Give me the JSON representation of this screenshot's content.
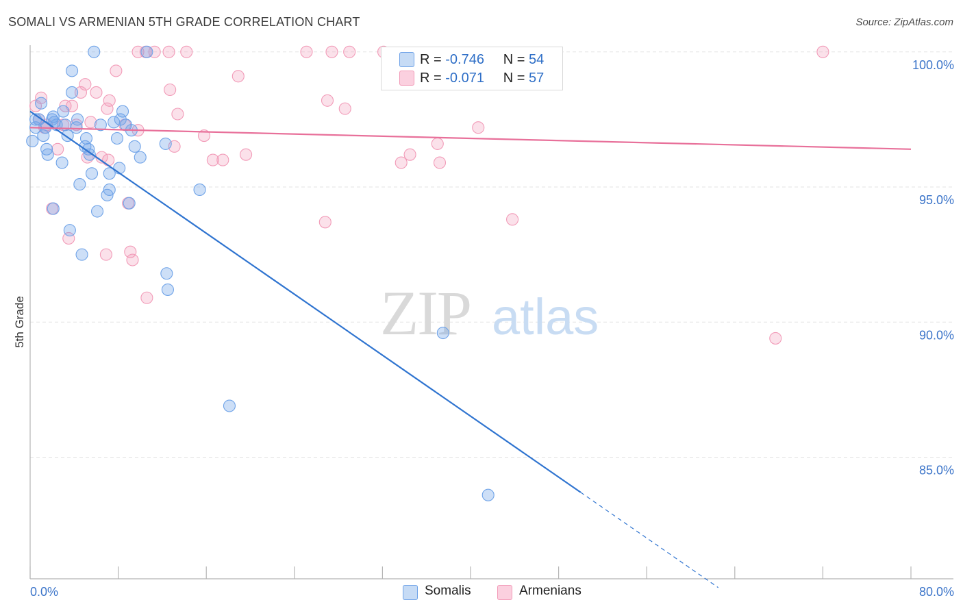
{
  "title": "SOMALI VS ARMENIAN 5TH GRADE CORRELATION CHART",
  "source": "Source: ZipAtlas.com",
  "watermark": "ZIPatlas",
  "legend": {
    "rows": [
      {
        "r_label": "R =",
        "r_value": "-0.746",
        "n_label": "N =",
        "n_value": "54",
        "color": "#6fa3e8"
      },
      {
        "r_label": "R =",
        "r_value": "-0.071",
        "n_label": "N =",
        "n_value": "57",
        "color": "#f29bb8"
      }
    ]
  },
  "bottom_legend": [
    {
      "label": "Somalis",
      "color": "#6fa3e8"
    },
    {
      "label": "Armenians",
      "color": "#f29bb8"
    }
  ],
  "chart_data": {
    "type": "scatter",
    "title": "SOMALI VS ARMENIAN 5TH GRADE CORRELATION CHART",
    "xlabel": "",
    "ylabel": "5th Grade",
    "xlim": [
      0,
      80
    ],
    "ylim": [
      80.5,
      100.4
    ],
    "x_tick_labels": [
      "0.0%",
      "80.0%"
    ],
    "y_ticks": [
      85,
      90,
      95,
      100
    ],
    "y_tick_labels": [
      "85.0%",
      "90.0%",
      "95.0%",
      "100.0%"
    ],
    "grid": true,
    "series": [
      {
        "name": "Somalis",
        "color": "#6fa3e8",
        "trend": {
          "x0": 0,
          "y0": 97.8,
          "x1": 50,
          "y1": 83.7,
          "x_dash_end": 62.5
        },
        "points": [
          [
            0.2,
            96.7
          ],
          [
            0.5,
            97.2
          ],
          [
            0.8,
            97.5
          ],
          [
            1.0,
            98.1
          ],
          [
            1.2,
            96.9
          ],
          [
            1.4,
            97.2
          ],
          [
            1.5,
            96.4
          ],
          [
            1.6,
            96.2
          ],
          [
            2.0,
            97.5
          ],
          [
            2.1,
            97.6
          ],
          [
            2.2,
            97.4
          ],
          [
            2.4,
            97.3
          ],
          [
            2.9,
            95.9
          ],
          [
            3.0,
            97.8
          ],
          [
            3.2,
            97.3
          ],
          [
            3.4,
            96.9
          ],
          [
            3.6,
            93.4
          ],
          [
            3.8,
            99.3
          ],
          [
            3.8,
            98.5
          ],
          [
            4.2,
            97.2
          ],
          [
            4.3,
            97.5
          ],
          [
            4.5,
            95.1
          ],
          [
            4.7,
            92.5
          ],
          [
            5.0,
            96.5
          ],
          [
            5.1,
            96.8
          ],
          [
            5.3,
            96.4
          ],
          [
            5.4,
            96.2
          ],
          [
            5.6,
            95.5
          ],
          [
            5.8,
            100.0
          ],
          [
            6.1,
            94.1
          ],
          [
            6.4,
            97.3
          ],
          [
            7.0,
            94.7
          ],
          [
            7.2,
            95.5
          ],
          [
            7.2,
            94.9
          ],
          [
            7.6,
            97.4
          ],
          [
            7.9,
            96.8
          ],
          [
            8.1,
            95.7
          ],
          [
            8.2,
            97.5
          ],
          [
            8.4,
            97.8
          ],
          [
            8.7,
            97.3
          ],
          [
            9.0,
            94.4
          ],
          [
            9.2,
            97.1
          ],
          [
            9.5,
            96.5
          ],
          [
            10.0,
            96.1
          ],
          [
            10.6,
            100.0
          ],
          [
            12.3,
            96.6
          ],
          [
            12.4,
            91.8
          ],
          [
            12.5,
            91.2
          ],
          [
            15.4,
            94.9
          ],
          [
            18.1,
            86.9
          ],
          [
            37.5,
            89.6
          ],
          [
            41.6,
            83.6
          ],
          [
            2.1,
            94.2
          ],
          [
            0.5,
            97.5
          ]
        ]
      },
      {
        "name": "Armenians",
        "color": "#f29bb8",
        "trend": {
          "x0": 0,
          "y0": 97.2,
          "x1": 80,
          "y1": 96.4
        },
        "points": [
          [
            0.5,
            98.0
          ],
          [
            0.8,
            97.5
          ],
          [
            1.0,
            98.3
          ],
          [
            1.3,
            97.2
          ],
          [
            1.5,
            97.3
          ],
          [
            2.0,
            94.2
          ],
          [
            2.5,
            96.4
          ],
          [
            3.2,
            98.0
          ],
          [
            3.5,
            93.1
          ],
          [
            3.8,
            98.0
          ],
          [
            4.2,
            97.3
          ],
          [
            4.6,
            98.5
          ],
          [
            5.0,
            98.8
          ],
          [
            5.2,
            96.1
          ],
          [
            5.5,
            97.4
          ],
          [
            6.0,
            98.5
          ],
          [
            6.5,
            96.1
          ],
          [
            6.9,
            92.5
          ],
          [
            7.0,
            97.9
          ],
          [
            7.2,
            98.2
          ],
          [
            7.8,
            99.3
          ],
          [
            8.6,
            97.3
          ],
          [
            8.9,
            94.4
          ],
          [
            9.1,
            92.6
          ],
          [
            9.3,
            92.3
          ],
          [
            9.8,
            100.0
          ],
          [
            10.5,
            100.0
          ],
          [
            10.6,
            90.9
          ],
          [
            11.3,
            100.0
          ],
          [
            12.6,
            100.0
          ],
          [
            12.7,
            98.6
          ],
          [
            13.1,
            96.5
          ],
          [
            13.4,
            97.7
          ],
          [
            14.2,
            100.0
          ],
          [
            15.8,
            96.9
          ],
          [
            16.6,
            96.0
          ],
          [
            17.5,
            96.0
          ],
          [
            18.9,
            99.1
          ],
          [
            19.6,
            96.2
          ],
          [
            25.1,
            100.0
          ],
          [
            26.8,
            93.7
          ],
          [
            27.0,
            98.2
          ],
          [
            27.4,
            100.0
          ],
          [
            28.6,
            97.9
          ],
          [
            29.0,
            100.0
          ],
          [
            32.1,
            100.0
          ],
          [
            33.7,
            95.9
          ],
          [
            34.5,
            96.2
          ],
          [
            37.0,
            96.6
          ],
          [
            37.2,
            95.9
          ],
          [
            40.7,
            97.2
          ],
          [
            43.8,
            93.8
          ],
          [
            67.7,
            89.4
          ],
          [
            72.0,
            100.0
          ],
          [
            9.8,
            97.1
          ],
          [
            7.1,
            96.0
          ],
          [
            3.0,
            97.3
          ]
        ]
      }
    ]
  }
}
